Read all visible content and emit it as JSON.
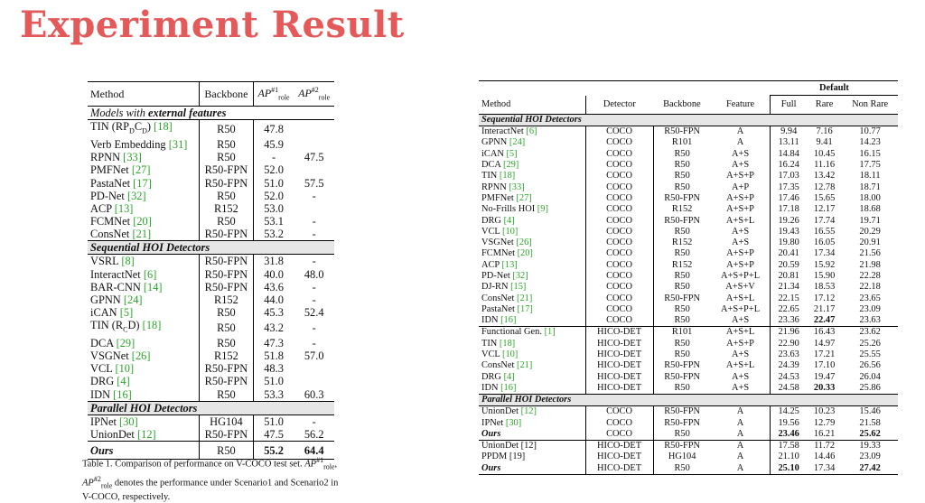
{
  "title": "Experiment Result",
  "table1": {
    "headers": [
      "Method",
      "Backbone",
      "AP",
      "AP"
    ],
    "ap_sup": [
      "#1",
      "#2"
    ],
    "ap_sub": "role",
    "sections": [
      {
        "label_prefix": "Models with ",
        "label_bold": "external features",
        "rows": [
          {
            "method": "TIN (RP",
            "sub1": "D",
            "mid": "C",
            "sub2": "D",
            "after": ")",
            "cite": "18",
            "backbone": "R50",
            "ap1": "47.8",
            "ap2": ""
          },
          {
            "method": "Verb Embedding",
            "cite": "31",
            "backbone": "R50",
            "ap1": "45.9",
            "ap2": ""
          },
          {
            "method": "RPNN",
            "cite": "33",
            "backbone": "R50",
            "ap1": "-",
            "ap2": "47.5"
          },
          {
            "method": "PMFNet",
            "cite": "27",
            "backbone": "R50-FPN",
            "ap1": "52.0",
            "ap2": ""
          },
          {
            "method": "PastaNet",
            "cite": "17",
            "backbone": "R50-FPN",
            "ap1": "51.0",
            "ap2": "57.5"
          },
          {
            "method": "PD-Net",
            "cite": "32",
            "backbone": "R50",
            "ap1": "52.0",
            "ap2": "-"
          },
          {
            "method": "ACP",
            "cite": "13",
            "backbone": "R152",
            "ap1": "53.0",
            "ap2": ""
          },
          {
            "method": "FCMNet",
            "cite": "20",
            "backbone": "R50",
            "ap1": "53.1",
            "ap2": "-"
          },
          {
            "method": "ConsNet",
            "cite": "21",
            "backbone": "R50-FPN",
            "ap1": "53.2",
            "ap2": "-"
          }
        ]
      },
      {
        "label": "Sequential HOI Detectors",
        "rows": [
          {
            "method": "VSRL",
            "cite": "8",
            "backbone": "R50-FPN",
            "ap1": "31.8",
            "ap2": "-"
          },
          {
            "method": "InteractNet",
            "cite": "6",
            "backbone": "R50-FPN",
            "ap1": "40.0",
            "ap2": "48.0"
          },
          {
            "method": "BAR-CNN",
            "cite": "14",
            "backbone": "R50-FPN",
            "ap1": "43.6",
            "ap2": "-"
          },
          {
            "method": "GPNN",
            "cite": "24",
            "backbone": "R152",
            "ap1": "44.0",
            "ap2": "-"
          },
          {
            "method": "iCAN",
            "cite": "5",
            "backbone": "R50",
            "ap1": "45.3",
            "ap2": "52.4"
          },
          {
            "method": "TIN (R",
            "sub1": "C",
            "after": "D)",
            "cite": "18",
            "backbone": "R50",
            "ap1": "43.2",
            "ap2": "-"
          },
          {
            "method": "DCA",
            "cite": "29",
            "backbone": "R50",
            "ap1": "47.3",
            "ap2": "-"
          },
          {
            "method": "VSGNet",
            "cite": "26",
            "backbone": "R152",
            "ap1": "51.8",
            "ap2": "57.0"
          },
          {
            "method": "VCL",
            "cite": "10",
            "backbone": "R50-FPN",
            "ap1": "48.3",
            "ap2": ""
          },
          {
            "method": "DRG",
            "cite": "4",
            "backbone": "R50-FPN",
            "ap1": "51.0",
            "ap2": ""
          },
          {
            "method": "IDN",
            "cite": "16",
            "backbone": "R50",
            "ap1": "53.3",
            "ap2": "60.3"
          }
        ]
      },
      {
        "label": "Parallel HOI Detectors",
        "rows": [
          {
            "method": "IPNet",
            "cite": "30",
            "backbone": "HG104",
            "ap1": "51.0",
            "ap2": "-"
          },
          {
            "method": "UnionDet",
            "cite": "12",
            "backbone": "R50-FPN",
            "ap1": "47.5",
            "ap2": "56.2"
          }
        ]
      }
    ],
    "ours": {
      "method": "Ours",
      "backbone": "R50",
      "ap1": "55.2",
      "ap2": "64.4"
    },
    "caption_a": "Table 1. Comparison of performance on V-COCO test set. ",
    "caption_b": ", ",
    "caption_c": " denotes the performance under Scenario1 and Scenario2 in V-COCO, respectively."
  },
  "table2": {
    "group_header": "Default",
    "headers": [
      "Method",
      "Detector",
      "Backbone",
      "Feature",
      "Full",
      "Rare",
      "Non Rare"
    ],
    "sections": [
      {
        "label": "Sequential HOI Detectors",
        "groups": [
          [
            {
              "method": "InteractNet",
              "cite": "6",
              "detector": "COCO",
              "backbone": "R50-FPN",
              "feature": "A",
              "full": "9.94",
              "rare": "7.16",
              "nonrare": "10.77"
            },
            {
              "method": "GPNN",
              "cite": "24",
              "detector": "COCO",
              "backbone": "R101",
              "feature": "A",
              "full": "13.11",
              "rare": "9.41",
              "nonrare": "14.23"
            },
            {
              "method": "iCAN",
              "cite": "5",
              "detector": "COCO",
              "backbone": "R50",
              "feature": "A+S",
              "full": "14.84",
              "rare": "10.45",
              "nonrare": "16.15"
            },
            {
              "method": "DCA",
              "cite": "29",
              "detector": "COCO",
              "backbone": "R50",
              "feature": "A+S",
              "full": "16.24",
              "rare": "11.16",
              "nonrare": "17.75"
            },
            {
              "method": "TIN",
              "cite": "18",
              "detector": "COCO",
              "backbone": "R50",
              "feature": "A+S+P",
              "full": "17.03",
              "rare": "13.42",
              "nonrare": "18.11"
            },
            {
              "method": "RPNN",
              "cite": "33",
              "detector": "COCO",
              "backbone": "R50",
              "feature": "A+P",
              "full": "17.35",
              "rare": "12.78",
              "nonrare": "18.71"
            },
            {
              "method": "PMFNet",
              "cite": "27",
              "detector": "COCO",
              "backbone": "R50-FPN",
              "feature": "A+S+P",
              "full": "17.46",
              "rare": "15.65",
              "nonrare": "18.00"
            },
            {
              "method": "No-Frills HOI",
              "cite": "9",
              "detector": "COCO",
              "backbone": "R152",
              "feature": "A+S+P",
              "full": "17.18",
              "rare": "12.17",
              "nonrare": "18.68"
            },
            {
              "method": "DRG",
              "cite": "4",
              "detector": "COCO",
              "backbone": "R50-FPN",
              "feature": "A+S+L",
              "full": "19.26",
              "rare": "17.74",
              "nonrare": "19.71"
            },
            {
              "method": "VCL",
              "cite": "10",
              "detector": "COCO",
              "backbone": "R50",
              "feature": "A+S",
              "full": "19.43",
              "rare": "16.55",
              "nonrare": "20.29"
            },
            {
              "method": "VSGNet",
              "cite": "26",
              "detector": "COCO",
              "backbone": "R152",
              "feature": "A+S",
              "full": "19.80",
              "rare": "16.05",
              "nonrare": "20.91"
            },
            {
              "method": "FCMNet",
              "cite": "20",
              "detector": "COCO",
              "backbone": "R50",
              "feature": "A+S+P",
              "full": "20.41",
              "rare": "17.34",
              "nonrare": "21.56"
            },
            {
              "method": "ACP",
              "cite": "13",
              "detector": "COCO",
              "backbone": "R152",
              "feature": "A+S+P",
              "full": "20.59",
              "rare": "15.92",
              "nonrare": "21.98"
            },
            {
              "method": "PD-Net",
              "cite": "32",
              "detector": "COCO",
              "backbone": "R50",
              "feature": "A+S+P+L",
              "full": "20.81",
              "rare": "15.90",
              "nonrare": "22.28"
            },
            {
              "method": "DJ-RN",
              "cite": "15",
              "detector": "COCO",
              "backbone": "R50",
              "feature": "A+S+V",
              "full": "21.34",
              "rare": "18.53",
              "nonrare": "22.18"
            },
            {
              "method": "ConsNet",
              "cite": "21",
              "detector": "COCO",
              "backbone": "R50-FPN",
              "feature": "A+S+L",
              "full": "22.15",
              "rare": "17.12",
              "nonrare": "23.65"
            },
            {
              "method": "PastaNet",
              "cite": "17",
              "detector": "COCO",
              "backbone": "R50",
              "feature": "A+S+P+L",
              "full": "22.65",
              "rare": "21.17",
              "nonrare": "23.09"
            },
            {
              "method": "IDN",
              "cite": "16",
              "detector": "COCO",
              "backbone": "R50",
              "feature": "A+S",
              "full": "23.36",
              "rare": "22.47",
              "nonrare": "23.63",
              "bold": [
                "rare"
              ]
            }
          ],
          [
            {
              "method": "Functional Gen.",
              "cite": "1",
              "detector": "HICO-DET",
              "backbone": "R101",
              "feature": "A+S+L",
              "full": "21.96",
              "rare": "16.43",
              "nonrare": "23.62"
            },
            {
              "method": "TIN",
              "cite": "18",
              "detector": "HICO-DET",
              "backbone": "R50",
              "feature": "A+S+P",
              "full": "22.90",
              "rare": "14.97",
              "nonrare": "25.26"
            },
            {
              "method": "VCL",
              "cite": "10",
              "detector": "HICO-DET",
              "backbone": "R50",
              "feature": "A+S",
              "full": "23.63",
              "rare": "17.21",
              "nonrare": "25.55"
            },
            {
              "method": "ConsNet",
              "cite": "21",
              "detector": "HICO-DET",
              "backbone": "R50-FPN",
              "feature": "A+S+L",
              "full": "24.39",
              "rare": "17.10",
              "nonrare": "26.56"
            },
            {
              "method": "DRG",
              "cite": "4",
              "detector": "HICO-DET",
              "backbone": "R50-FPN",
              "feature": "A+S",
              "full": "24.53",
              "rare": "19.47",
              "nonrare": "26.04"
            },
            {
              "method": "IDN",
              "cite": "16",
              "detector": "HICO-DET",
              "backbone": "R50",
              "feature": "A+S",
              "full": "24.58",
              "rare": "20.33",
              "nonrare": "25.86",
              "bold": [
                "rare"
              ]
            }
          ]
        ]
      },
      {
        "label": "Parallel HOI Detectors",
        "groups": [
          [
            {
              "method": "UnionDet",
              "cite": "12",
              "detector": "COCO",
              "backbone": "R50-FPN",
              "feature": "A",
              "full": "14.25",
              "rare": "10.23",
              "nonrare": "15.46"
            },
            {
              "method": "IPNet",
              "cite": "30",
              "detector": "COCO",
              "backbone": "R50-FPN",
              "feature": "A",
              "full": "19.56",
              "rare": "12.79",
              "nonrare": "21.58"
            },
            {
              "method": "Ours",
              "ours": true,
              "detector": "COCO",
              "backbone": "R50",
              "feature": "A",
              "full": "23.46",
              "rare": "16.21",
              "nonrare": "25.62",
              "bold": [
                "full",
                "nonrare"
              ]
            }
          ],
          [
            {
              "method": "UnionDet",
              "cite": "12",
              "citeplain": true,
              "detector": "HICO-DET",
              "backbone": "R50-FPN",
              "feature": "A",
              "full": "17.58",
              "rare": "11.72",
              "nonrare": "19.33"
            },
            {
              "method": "PPDM",
              "cite": "19",
              "citeplain": true,
              "detector": "HICO-DET",
              "backbone": "HG104",
              "feature": "A",
              "full": "21.10",
              "rare": "14.46",
              "nonrare": "23.09"
            },
            {
              "method": "Ours",
              "ours": true,
              "detector": "HICO-DET",
              "backbone": "R50",
              "feature": "A",
              "full": "25.10",
              "rare": "17.34",
              "nonrare": "27.42",
              "bold": [
                "full",
                "nonrare"
              ]
            }
          ]
        ]
      }
    ]
  }
}
